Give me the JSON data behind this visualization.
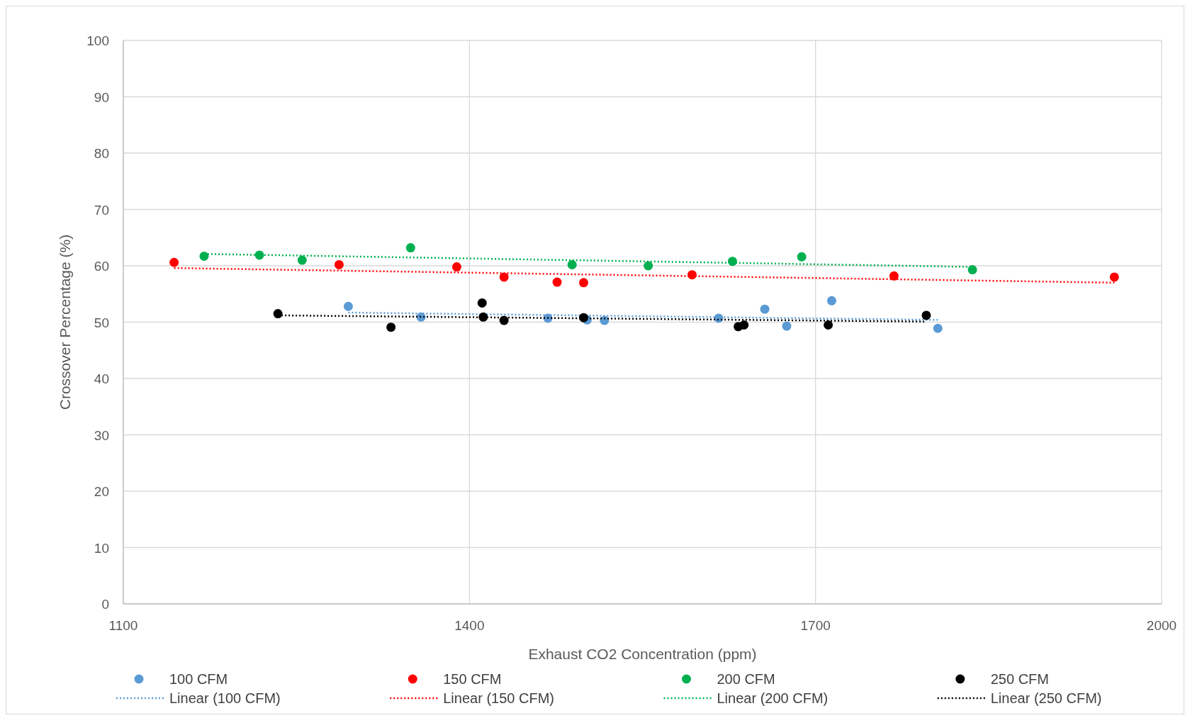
{
  "chart_data": {
    "type": "scatter",
    "xlabel": "Exhaust CO2 Concentration (ppm)",
    "ylabel": "Crossover Percentage (%)",
    "xlim": [
      1100,
      2000
    ],
    "xticks": [
      1100,
      1400,
      1700,
      2000
    ],
    "ylim": [
      0,
      100
    ],
    "yticks": [
      0,
      10,
      20,
      30,
      40,
      50,
      60,
      70,
      80,
      90,
      100
    ],
    "grid": true,
    "legend": "bottom",
    "marker": "circle",
    "series": [
      {
        "name": "100 CFM",
        "color": "#5b9bd5",
        "x": [
          1295,
          1358,
          1468,
          1502,
          1517,
          1616,
          1656,
          1675,
          1714,
          1806
        ],
        "values": [
          52.8,
          50.9,
          50.7,
          50.4,
          50.3,
          50.7,
          52.3,
          49.3,
          53.8,
          48.9
        ]
      },
      {
        "name": "Linear (100 CFM)",
        "type": "line",
        "line_style": "dotted",
        "marker": "none",
        "color": "#5b9bd5",
        "x": [
          1295,
          1806
        ],
        "values": [
          51.7,
          50.4
        ]
      },
      {
        "name": "150 CFM",
        "color": "#ff0000",
        "x": [
          1144,
          1287,
          1389,
          1430,
          1476,
          1499,
          1593,
          1768,
          1959
        ],
        "values": [
          60.6,
          60.2,
          59.8,
          58.0,
          57.1,
          57.0,
          58.4,
          58.2,
          58.0
        ]
      },
      {
        "name": "Linear (150 CFM)",
        "type": "line",
        "line_style": "dotted",
        "marker": "none",
        "color": "#ff0000",
        "x": [
          1144,
          1959
        ],
        "values": [
          59.6,
          57.0
        ]
      },
      {
        "name": "200 CFM",
        "color": "#00b050",
        "x": [
          1170,
          1218,
          1255,
          1349,
          1489,
          1555,
          1628,
          1688,
          1836
        ],
        "values": [
          61.7,
          61.9,
          61.0,
          63.2,
          60.2,
          60.0,
          60.8,
          61.6,
          59.3
        ]
      },
      {
        "name": "Linear (200 CFM)",
        "type": "line",
        "line_style": "dotted",
        "marker": "none",
        "color": "#00b050",
        "x": [
          1170,
          1836
        ],
        "values": [
          62.1,
          59.8
        ]
      },
      {
        "name": "250 CFM",
        "color": "#000000",
        "x": [
          1234,
          1332,
          1411,
          1412,
          1430,
          1499,
          1633,
          1638,
          1711,
          1796
        ],
        "values": [
          51.5,
          49.1,
          53.4,
          50.9,
          50.3,
          50.8,
          49.2,
          49.5,
          49.5,
          51.2
        ]
      },
      {
        "name": "Linear (250 CFM)",
        "type": "line",
        "line_style": "dotted",
        "marker": "none",
        "color": "#000000",
        "x": [
          1234,
          1796
        ],
        "values": [
          51.2,
          50.1
        ]
      }
    ]
  }
}
